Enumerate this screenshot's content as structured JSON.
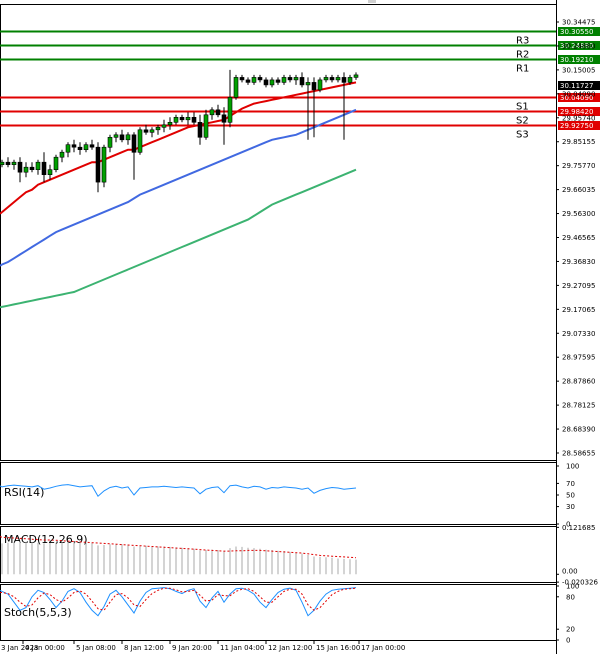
{
  "chart_data": {
    "type": "candlestick",
    "main": {
      "y_ticks": [
        "30.34475",
        "30.24880",
        "30.15005",
        "30.04090",
        "29.95740",
        "29.85155",
        "29.75770",
        "29.66035",
        "29.56300",
        "29.46565",
        "29.36830",
        "29.27095",
        "29.17065",
        "29.07330",
        "28.97595",
        "28.87860",
        "28.78125",
        "28.68390",
        "28.58655"
      ],
      "ylim": [
        28.58655,
        30.39
      ],
      "current_price": "30.11727",
      "levels": [
        {
          "name": "R3",
          "value": 30.3055,
          "label": "30.30550",
          "color": "#008000"
        },
        {
          "name": "R2",
          "value": 30.2488,
          "label": "30.24880",
          "color": "#008000"
        },
        {
          "name": "R1",
          "value": 30.1921,
          "label": "30.19210",
          "color": "#008000"
        },
        {
          "name": "S1",
          "value": 30.0409,
          "label": "30.04090",
          "color": "#e00000"
        },
        {
          "name": "S2",
          "value": 29.9842,
          "label": "29.98420",
          "color": "#e00000"
        },
        {
          "name": "S3",
          "value": 29.9275,
          "label": "29.92750",
          "color": "#e00000"
        }
      ],
      "candles": [
        [
          29.77,
          29.79,
          29.76,
          29.78
        ],
        [
          29.78,
          29.8,
          29.76,
          29.77
        ],
        [
          29.77,
          29.79,
          29.75,
          29.78
        ],
        [
          29.78,
          29.8,
          29.7,
          29.74
        ],
        [
          29.74,
          29.78,
          29.72,
          29.76
        ],
        [
          29.76,
          29.78,
          29.74,
          29.75
        ],
        [
          29.75,
          29.79,
          29.73,
          29.78
        ],
        [
          29.78,
          29.82,
          29.7,
          29.73
        ],
        [
          29.73,
          29.77,
          29.71,
          29.75
        ],
        [
          29.75,
          29.81,
          29.74,
          29.8
        ],
        [
          29.8,
          29.83,
          29.78,
          29.82
        ],
        [
          29.82,
          29.86,
          29.8,
          29.85
        ],
        [
          29.85,
          29.87,
          29.82,
          29.84
        ],
        [
          29.84,
          29.86,
          29.81,
          29.83
        ],
        [
          29.83,
          29.86,
          29.82,
          29.85
        ],
        [
          29.85,
          29.87,
          29.83,
          29.84
        ],
        [
          29.84,
          29.86,
          29.66,
          29.7
        ],
        [
          29.7,
          29.85,
          29.68,
          29.84
        ],
        [
          29.84,
          29.89,
          29.82,
          29.88
        ],
        [
          29.88,
          29.9,
          29.86,
          29.89
        ],
        [
          29.89,
          29.91,
          29.86,
          29.87
        ],
        [
          29.87,
          29.9,
          29.85,
          29.89
        ],
        [
          29.89,
          29.9,
          29.71,
          29.82
        ],
        [
          29.82,
          29.92,
          29.81,
          29.91
        ],
        [
          29.91,
          29.93,
          29.89,
          29.9
        ],
        [
          29.9,
          29.92,
          29.88,
          29.91
        ],
        [
          29.91,
          29.93,
          29.89,
          29.92
        ],
        [
          29.92,
          29.95,
          29.9,
          29.93
        ],
        [
          29.93,
          29.96,
          29.91,
          29.94
        ],
        [
          29.94,
          29.97,
          29.93,
          29.96
        ],
        [
          29.96,
          29.97,
          29.94,
          29.95
        ],
        [
          29.95,
          29.98,
          29.93,
          29.96
        ],
        [
          29.96,
          29.98,
          29.93,
          29.94
        ],
        [
          29.94,
          29.97,
          29.85,
          29.88
        ],
        [
          29.88,
          29.99,
          29.87,
          29.97
        ],
        [
          29.97,
          30.0,
          29.95,
          29.99
        ],
        [
          29.99,
          30.01,
          29.96,
          29.97
        ],
        [
          29.97,
          30.0,
          29.85,
          29.94
        ],
        [
          29.94,
          30.15,
          29.92,
          30.04
        ],
        [
          30.04,
          30.13,
          30.03,
          30.12
        ],
        [
          30.12,
          30.13,
          30.1,
          30.11
        ],
        [
          30.11,
          30.12,
          30.09,
          30.1
        ],
        [
          30.1,
          30.13,
          30.09,
          30.12
        ],
        [
          30.12,
          30.13,
          30.1,
          30.11
        ],
        [
          30.11,
          30.12,
          30.08,
          30.09
        ],
        [
          30.09,
          30.12,
          30.08,
          30.11
        ],
        [
          30.11,
          30.12,
          30.09,
          30.1
        ],
        [
          30.1,
          30.13,
          30.09,
          30.12
        ],
        [
          30.12,
          30.13,
          30.1,
          30.11
        ],
        [
          30.11,
          30.13,
          30.09,
          30.12
        ],
        [
          30.12,
          30.14,
          30.08,
          30.09
        ],
        [
          30.09,
          30.12,
          29.87,
          30.1
        ],
        [
          30.1,
          30.12,
          29.88,
          30.07
        ],
        [
          30.07,
          30.12,
          30.06,
          30.11
        ],
        [
          30.11,
          30.13,
          30.1,
          30.12
        ],
        [
          30.12,
          30.13,
          30.1,
          30.11
        ],
        [
          30.11,
          30.13,
          30.1,
          30.12
        ],
        [
          30.12,
          30.14,
          29.87,
          30.1
        ],
        [
          30.1,
          30.13,
          30.09,
          30.12
        ],
        [
          30.12,
          30.14,
          30.11,
          30.13
        ]
      ],
      "ma_red": [
        29.58,
        29.6,
        29.62,
        29.64,
        29.66,
        29.67,
        29.69,
        29.7,
        29.71,
        29.72,
        29.73,
        29.74,
        29.75,
        29.76,
        29.77,
        29.78,
        29.78,
        29.79,
        29.8,
        29.81,
        29.82,
        29.83,
        29.83,
        29.84,
        29.85,
        29.86,
        29.87,
        29.88,
        29.89,
        29.9,
        29.91,
        29.92,
        29.925,
        29.93,
        29.935,
        29.94,
        29.945,
        29.95,
        29.965,
        29.98,
        29.995,
        30.005,
        30.015,
        30.02,
        30.025,
        30.03,
        30.035,
        30.04,
        30.045,
        30.05,
        30.055,
        30.06,
        30.065,
        30.07,
        30.075,
        30.08,
        30.085,
        30.09,
        30.095,
        30.1
      ],
      "ma_blue": [
        29.37,
        29.38,
        29.395,
        29.41,
        29.425,
        29.44,
        29.455,
        29.47,
        29.485,
        29.5,
        29.51,
        29.52,
        29.53,
        29.54,
        29.55,
        29.56,
        29.57,
        29.58,
        29.59,
        29.6,
        29.61,
        29.62,
        29.635,
        29.65,
        29.66,
        29.67,
        29.68,
        29.69,
        29.7,
        29.71,
        29.72,
        29.73,
        29.74,
        29.75,
        29.76,
        29.77,
        29.78,
        29.79,
        29.8,
        29.81,
        29.82,
        29.83,
        29.84,
        29.85,
        29.86,
        29.87,
        29.875,
        29.88,
        29.885,
        29.89,
        29.9,
        29.91,
        29.92,
        29.93,
        29.94,
        29.95,
        29.96,
        29.97,
        29.98,
        29.99
      ],
      "ma_green": [
        29.2,
        29.205,
        29.21,
        29.215,
        29.22,
        29.225,
        29.23,
        29.235,
        29.24,
        29.245,
        29.25,
        29.255,
        29.26,
        29.27,
        29.28,
        29.29,
        29.3,
        29.31,
        29.32,
        29.33,
        29.34,
        29.35,
        29.36,
        29.37,
        29.38,
        29.39,
        29.4,
        29.41,
        29.42,
        29.43,
        29.44,
        29.45,
        29.46,
        29.47,
        29.48,
        29.49,
        29.5,
        29.51,
        29.52,
        29.53,
        29.54,
        29.55,
        29.565,
        29.58,
        29.595,
        29.61,
        29.62,
        29.63,
        29.64,
        29.65,
        29.66,
        29.67,
        29.68,
        29.69,
        29.7,
        29.71,
        29.72,
        29.73,
        29.74,
        29.75
      ]
    },
    "rsi": {
      "label": "RSI(14)",
      "ticks": [
        "100",
        "70",
        "50",
        "30",
        "0"
      ],
      "ylim": [
        0,
        100
      ],
      "values": [
        64,
        66,
        67,
        66,
        65,
        64,
        66,
        60,
        62,
        65,
        67,
        68,
        66,
        64,
        65,
        66,
        48,
        57,
        63,
        65,
        62,
        64,
        50,
        62,
        63,
        64,
        64,
        65,
        64,
        63,
        64,
        63,
        62,
        52,
        60,
        63,
        64,
        54,
        66,
        67,
        64,
        62,
        65,
        64,
        60,
        63,
        62,
        64,
        63,
        62,
        60,
        62,
        53,
        58,
        61,
        63,
        62,
        60,
        61,
        62
      ]
    },
    "macd": {
      "label": "MACD(12,26,9)",
      "ticks": [
        "0.121685",
        "0.00",
        "-0.020326"
      ],
      "ylim": [
        -0.02,
        0.12
      ],
      "values": [
        0.08,
        0.082,
        0.083,
        0.085,
        0.084,
        0.083,
        0.082,
        0.08,
        0.081,
        0.082,
        0.083,
        0.084,
        0.084,
        0.083,
        0.082,
        0.081,
        0.075,
        0.076,
        0.078,
        0.079,
        0.078,
        0.077,
        0.072,
        0.073,
        0.074,
        0.073,
        0.072,
        0.072,
        0.071,
        0.07,
        0.069,
        0.068,
        0.066,
        0.062,
        0.063,
        0.064,
        0.063,
        0.06,
        0.068,
        0.072,
        0.071,
        0.069,
        0.068,
        0.066,
        0.064,
        0.063,
        0.061,
        0.06,
        0.058,
        0.056,
        0.054,
        0.05,
        0.046,
        0.045,
        0.044,
        0.043,
        0.041,
        0.04,
        0.039,
        0.038
      ],
      "signal": [
        0.096,
        0.095,
        0.094,
        0.093,
        0.092,
        0.091,
        0.09,
        0.089,
        0.089,
        0.088,
        0.087,
        0.086,
        0.085,
        0.084,
        0.083,
        0.082,
        0.081,
        0.08,
        0.079,
        0.078,
        0.077,
        0.076,
        0.075,
        0.074,
        0.073,
        0.072,
        0.071,
        0.07,
        0.069,
        0.068,
        0.067,
        0.066,
        0.065,
        0.064,
        0.063,
        0.062,
        0.061,
        0.06,
        0.06,
        0.061,
        0.061,
        0.062,
        0.062,
        0.062,
        0.061,
        0.06,
        0.059,
        0.058,
        0.057,
        0.056,
        0.055,
        0.053,
        0.051,
        0.049,
        0.048,
        0.047,
        0.046,
        0.045,
        0.044,
        0.043
      ]
    },
    "stoch": {
      "label": "Stoch(5,5,3)",
      "ticks": [
        "100",
        "80",
        "20",
        "0"
      ],
      "ylim": [
        0,
        100
      ],
      "k": [
        90,
        85,
        70,
        55,
        60,
        80,
        92,
        88,
        75,
        60,
        72,
        90,
        95,
        88,
        70,
        55,
        45,
        62,
        85,
        92,
        80,
        65,
        50,
        72,
        88,
        95,
        96,
        97,
        95,
        90,
        86,
        92,
        95,
        72,
        60,
        78,
        90,
        70,
        85,
        95,
        96,
        92,
        85,
        70,
        60,
        75,
        88,
        94,
        96,
        92,
        70,
        45,
        55,
        72,
        85,
        92,
        94,
        95,
        96,
        97
      ],
      "d": [
        88,
        86,
        80,
        70,
        62,
        65,
        78,
        87,
        84,
        75,
        70,
        78,
        88,
        91,
        85,
        72,
        58,
        55,
        70,
        84,
        86,
        78,
        65,
        62,
        75,
        86,
        92,
        96,
        96,
        93,
        89,
        90,
        92,
        83,
        72,
        74,
        84,
        82,
        82,
        90,
        94,
        95,
        90,
        80,
        70,
        70,
        80,
        90,
        94,
        94,
        85,
        65,
        55,
        60,
        72,
        84,
        90,
        94,
        95,
        96
      ]
    },
    "x_ticks": [
      {
        "label": "3 Jan 2023",
        "i": -0.5
      },
      {
        "label": "4 Jan 00:00",
        "i": 3.5
      },
      {
        "label": "5 Jan 08:00",
        "i": 12
      },
      {
        "label": "8 Jan 12:00",
        "i": 20
      },
      {
        "label": "9 Jan 20:00",
        "i": 28
      },
      {
        "label": "11 Jan 04:00",
        "i": 36
      },
      {
        "label": "12 Jan 12:00",
        "i": 44
      },
      {
        "label": "15 Jan 16:00",
        "i": 52
      },
      {
        "label": "17 Jan 00:00",
        "i": 59.5
      }
    ]
  }
}
